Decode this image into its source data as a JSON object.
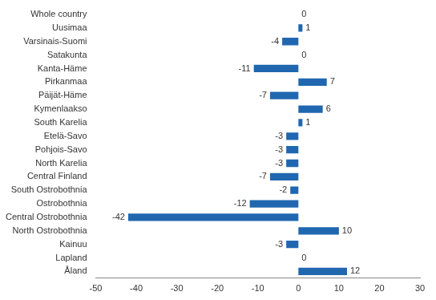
{
  "chart_data": {
    "type": "bar",
    "orientation": "horizontal",
    "categories": [
      "Whole country",
      "Uusimaa",
      "Varsinais-Suomi",
      "Satakunta",
      "Kanta-Häme",
      "Pirkanmaa",
      "Päijät-Häme",
      "Kymenlaakso",
      "South Karelia",
      "Etelä-Savo",
      "Pohjois-Savo",
      "North Karelia",
      "Central Finland",
      "South Ostrobothnia",
      "Ostrobothnia",
      "Central Ostrobothnia",
      "North Ostrobothnia",
      "Kainuu",
      "Lapland",
      "Åland"
    ],
    "values": [
      0,
      1,
      -4,
      0,
      -11,
      7,
      -7,
      6,
      1,
      -3,
      -3,
      -3,
      -7,
      -2,
      -12,
      -42,
      10,
      -3,
      0,
      12
    ],
    "color": "#2067b0",
    "xlim": [
      -50,
      30
    ],
    "xticks": [
      -50,
      -40,
      -30,
      -20,
      -10,
      0,
      10,
      20,
      30
    ],
    "grid": false,
    "data_labels": true
  }
}
